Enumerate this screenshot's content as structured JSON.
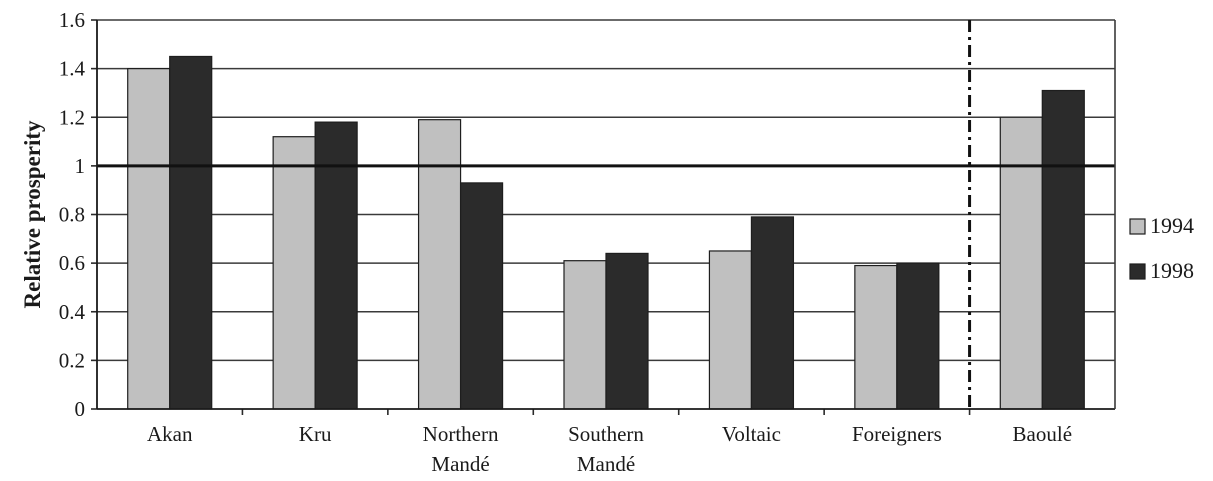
{
  "chart_data": {
    "type": "bar",
    "categories": [
      "Akan",
      "Kru",
      "Northern Mandé",
      "Southern Mandé",
      "Voltaic",
      "Foreigners",
      "Baoulé"
    ],
    "category_lines": [
      [
        "Akan"
      ],
      [
        "Kru"
      ],
      [
        "Northern",
        "Mandé"
      ],
      [
        "Southern",
        "Mandé"
      ],
      [
        "Voltaic"
      ],
      [
        "Foreigners"
      ],
      [
        "Baoulé"
      ]
    ],
    "series": [
      {
        "name": "1994",
        "color": "#c0c0c0",
        "values": [
          1.4,
          1.12,
          1.19,
          0.61,
          0.65,
          0.59,
          1.2
        ]
      },
      {
        "name": "1998",
        "color": "#2b2b2b",
        "values": [
          1.45,
          1.18,
          0.93,
          0.64,
          0.79,
          0.6,
          1.31
        ]
      }
    ],
    "ylabel": "Relative prosperity",
    "xlabel": "",
    "ylim": [
      0,
      1.6
    ],
    "yticks": [
      "0",
      "0.2",
      "0.4",
      "0.6",
      "0.8",
      "1",
      "1.2",
      "1.4",
      "1.6"
    ],
    "reference_line": 1,
    "separator_after_category": "Foreigners",
    "grid": true,
    "legend_position": "right"
  }
}
